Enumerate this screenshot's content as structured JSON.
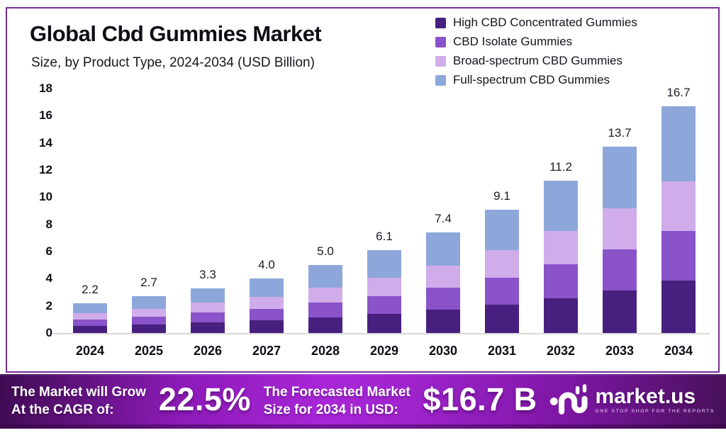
{
  "card": {
    "title": "Global Cbd Gummies Market",
    "subtitle": "Size, by Product Type, 2024-2034 (USD Billion)"
  },
  "chart_data": {
    "type": "bar",
    "stacked": true,
    "title": "Global Cbd Gummies Market Size, by Product Type, 2024-2034 (USD Billion)",
    "categories": [
      "2024",
      "2025",
      "2026",
      "2027",
      "2028",
      "2029",
      "2030",
      "2031",
      "2032",
      "2033",
      "2034"
    ],
    "series": [
      {
        "name": "High CBD Concentrated Gummies",
        "color": "#47207f",
        "values": [
          0.51,
          0.62,
          0.76,
          0.92,
          1.15,
          1.4,
          1.7,
          2.09,
          2.58,
          3.15,
          3.84
        ]
      },
      {
        "name": "CBD Isolate Gummies",
        "color": "#8a53c9",
        "values": [
          0.48,
          0.59,
          0.73,
          0.88,
          1.1,
          1.34,
          1.63,
          2.0,
          2.46,
          3.01,
          3.67
        ]
      },
      {
        "name": "Broad-spectrum CBD Gummies",
        "color": "#d0acea",
        "values": [
          0.48,
          0.59,
          0.73,
          0.88,
          1.1,
          1.34,
          1.63,
          2.0,
          2.46,
          3.01,
          3.67
        ]
      },
      {
        "name": "Full-spectrum CBD Gummies",
        "color": "#8da7db",
        "values": [
          0.73,
          0.9,
          1.08,
          1.32,
          1.65,
          2.02,
          2.44,
          3.01,
          3.7,
          4.53,
          5.52
        ]
      }
    ],
    "totals": [
      2.2,
      2.7,
      3.3,
      4.0,
      5.0,
      6.1,
      7.4,
      9.1,
      11.2,
      13.7,
      16.7
    ],
    "total_labels": [
      "2.2",
      "2.7",
      "3.3",
      "4.0",
      "5.0",
      "6.1",
      "7.4",
      "9.1",
      "11.2",
      "13.7",
      "16.7"
    ],
    "ylim": [
      0,
      18
    ],
    "ytick_labels": [
      "0",
      "2",
      "4",
      "6",
      "8",
      "10",
      "12",
      "14",
      "16",
      "18"
    ],
    "grid": false,
    "legend_position": "top-right"
  },
  "banner": {
    "cagr_label_line1": "The Market will Grow",
    "cagr_label_line2": "At the CAGR of:",
    "cagr_value": "22.5%",
    "forecast_label_line1": "The Forecasted Market",
    "forecast_label_line2": "Size for 2034 in USD:",
    "forecast_value": "$16.7 B",
    "logo_text": "market.us",
    "logo_tagline": "ONE STOP SHOP FOR THE REPORTS"
  },
  "colors": {
    "card_border": "#7a2e96",
    "banner_gradient_center": "#a826d8",
    "banner_gradient_edge": "#3f0b52",
    "axis_line": "#d9d9d9"
  }
}
